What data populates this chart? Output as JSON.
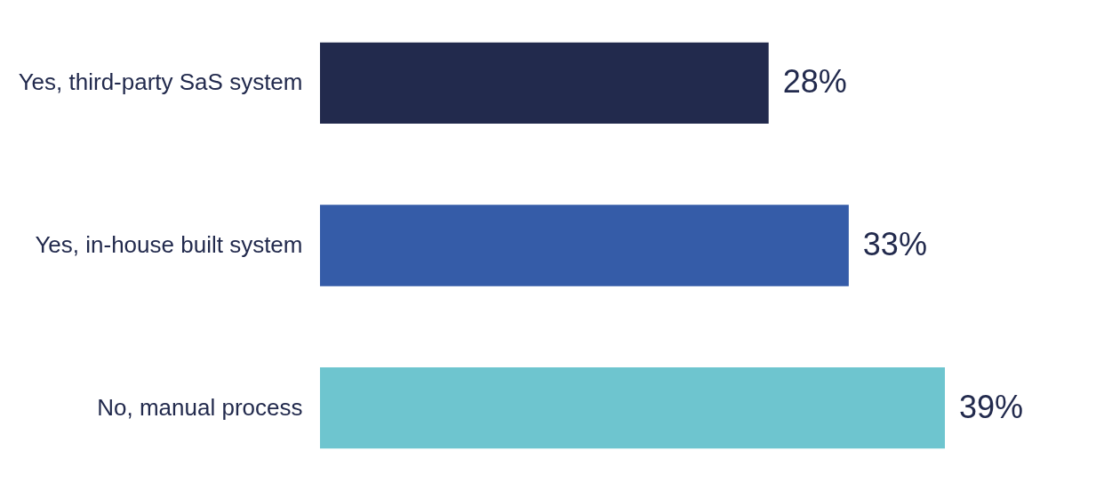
{
  "chart_data": {
    "type": "bar",
    "orientation": "horizontal",
    "categories": [
      "Yes, third-party SaS system",
      "Yes, in-house built system",
      "No, manual process"
    ],
    "values": [
      28,
      33,
      39
    ],
    "colors": [
      "#222a4d",
      "#355ca8",
      "#6ec5cf"
    ],
    "value_labels": [
      "28%",
      "33%",
      "39%"
    ]
  }
}
